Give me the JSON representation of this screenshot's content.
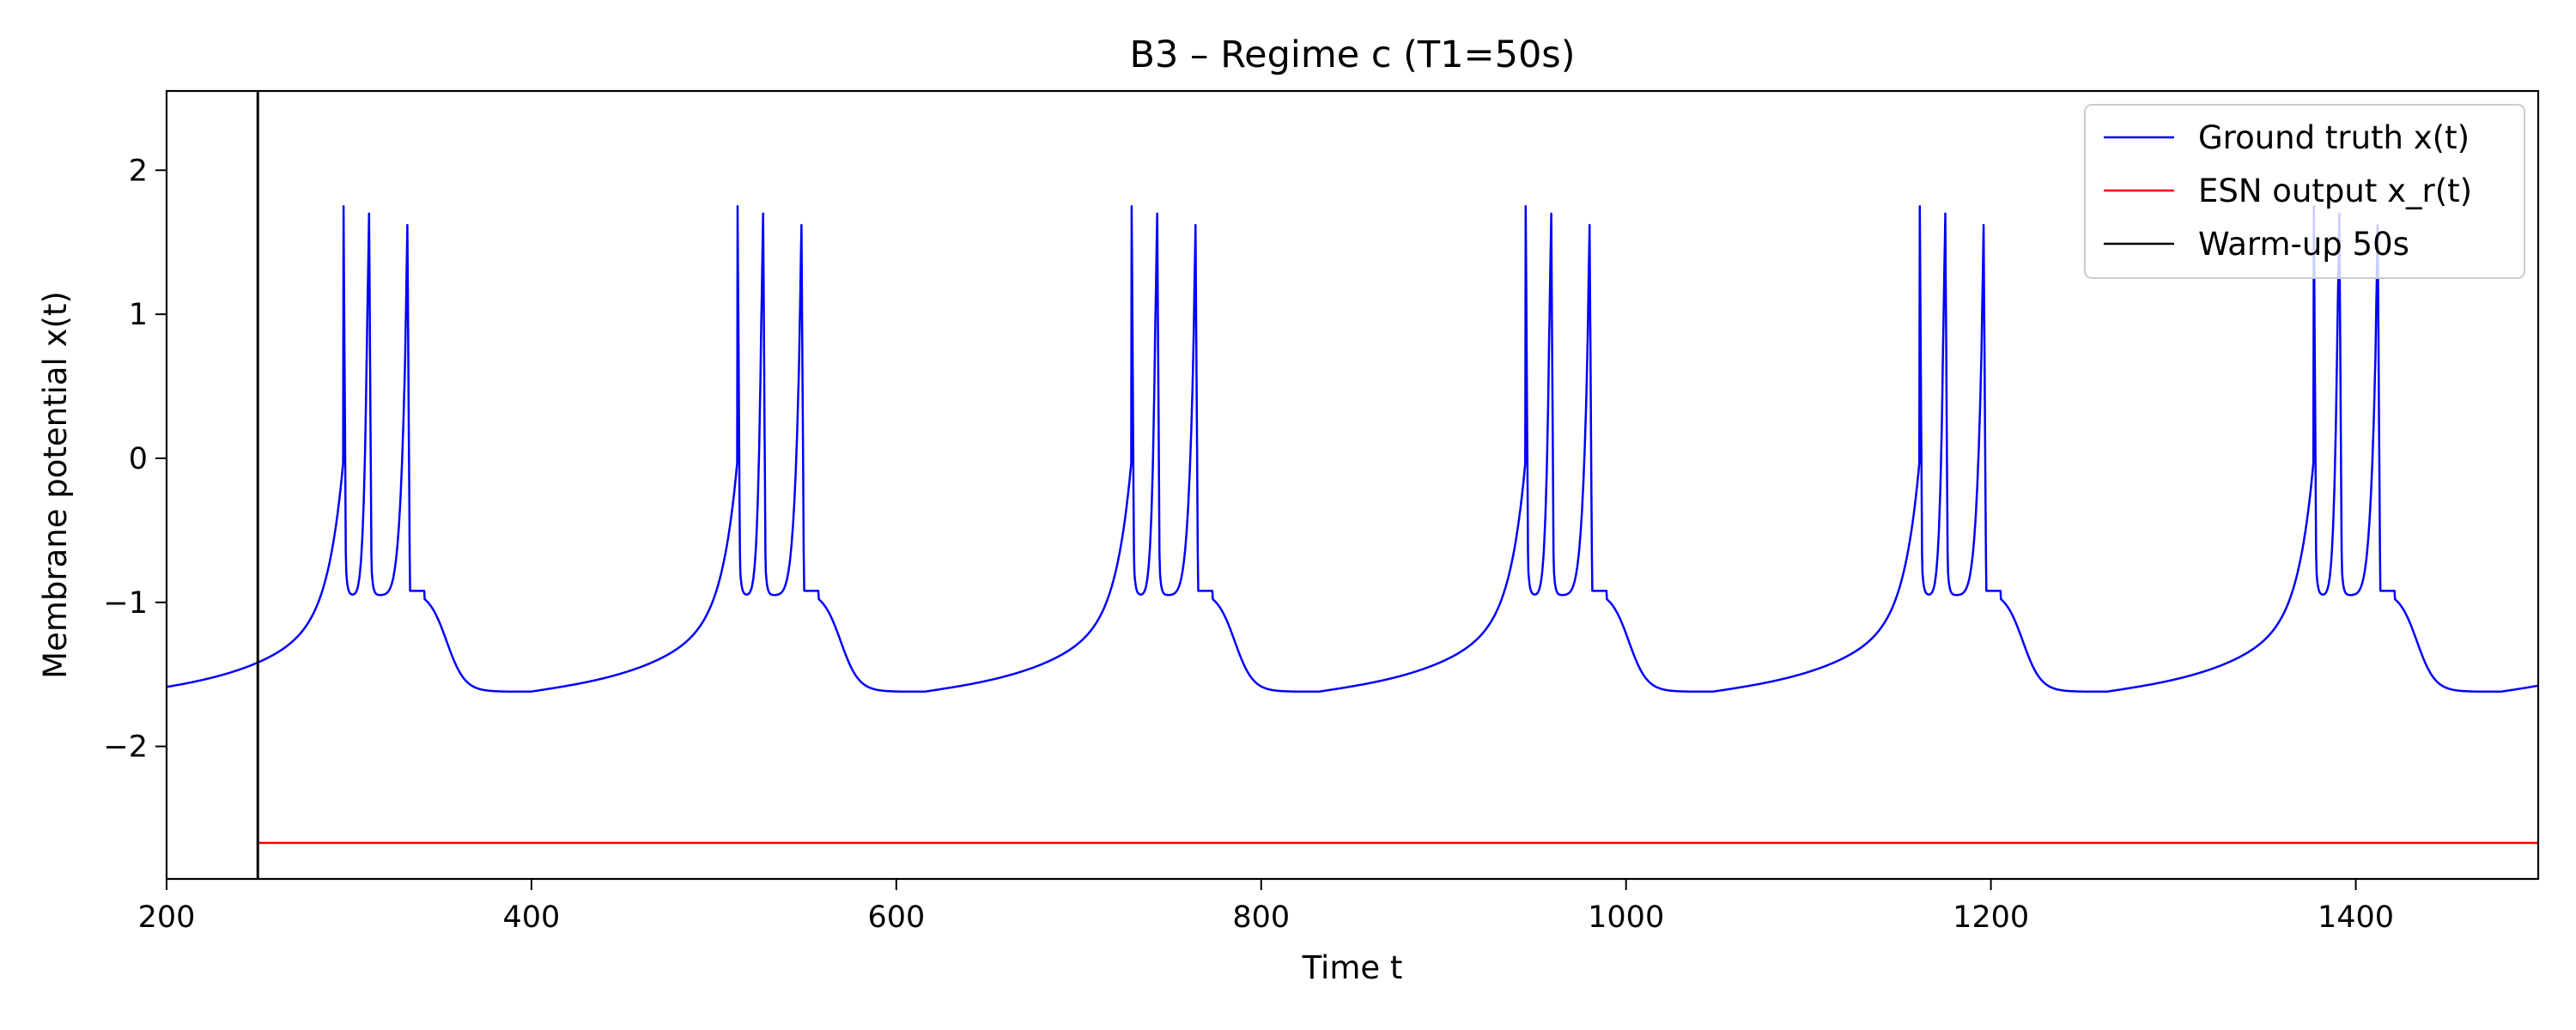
{
  "chart_data": {
    "type": "line",
    "title": "B3 – Regime c (T1=50s)",
    "xlabel": "Time t",
    "ylabel": "Membrane potential x(t)",
    "xlim": [
      200,
      1500
    ],
    "ylim": [
      -2.92,
      2.55
    ],
    "xticks": [
      200,
      400,
      600,
      800,
      1000,
      1200,
      1400
    ],
    "yticks": [
      2,
      1,
      0,
      -1,
      -2
    ],
    "ytick_labels": [
      "2",
      "1",
      "0",
      "−1",
      "−2"
    ],
    "grid": false,
    "legend_position": "upper right",
    "series": [
      {
        "name": "Ground truth x(t)",
        "color": "#0000ff",
        "kind": "bursting",
        "burst_period": 216,
        "first_spike": 297,
        "spike_offsets": [
          0,
          14,
          35
        ],
        "spike_peaks": [
          1.75,
          1.7,
          1.62
        ],
        "baseline_min": -1.62,
        "trough_after_spike": -0.95
      },
      {
        "name": "ESN output x_r(t)",
        "color": "#ff0000",
        "kind": "constant",
        "x": [
          250,
          1500
        ],
        "y": [
          -2.67,
          -2.67
        ]
      }
    ],
    "annotations": [
      {
        "name": "Warm-up 50s",
        "type": "vline",
        "x": 250,
        "color": "#000000"
      }
    ]
  }
}
